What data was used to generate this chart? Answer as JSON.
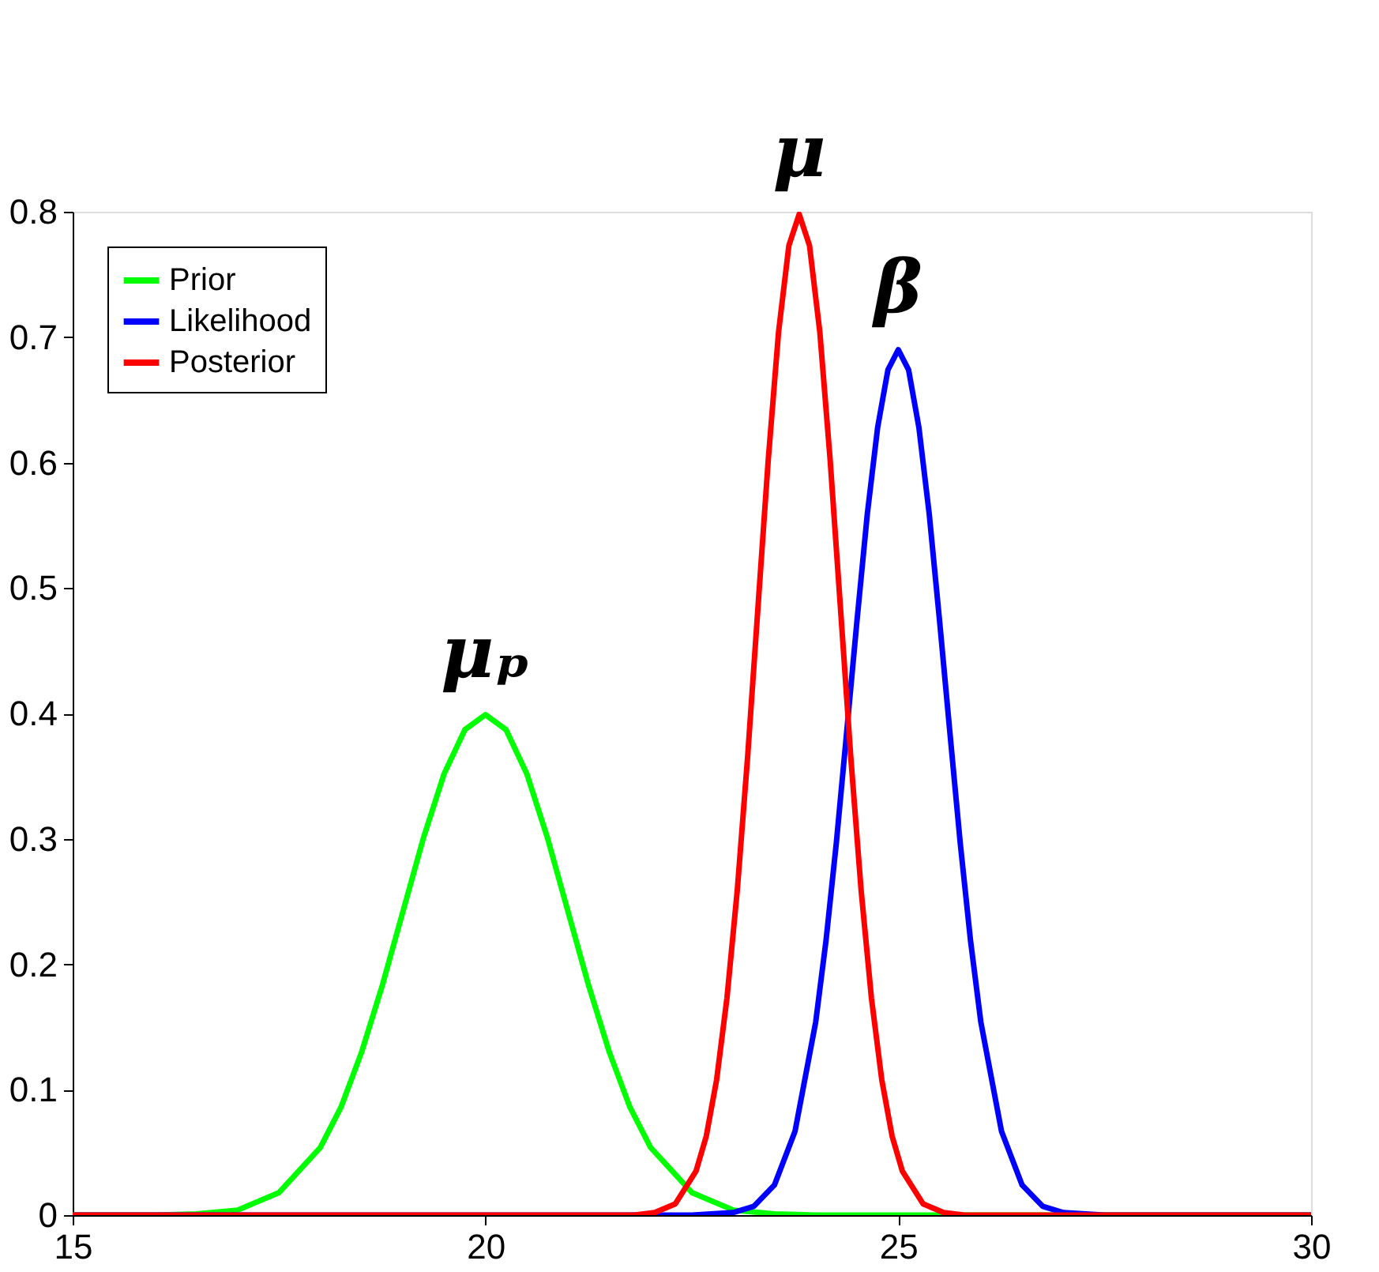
{
  "chart_data": {
    "type": "line",
    "xlim": [
      15,
      30
    ],
    "ylim": [
      0,
      0.8
    ],
    "xticks": [
      15,
      20,
      25,
      30
    ],
    "yticks": [
      0,
      0.1,
      0.2,
      0.3,
      0.4,
      0.5,
      0.6,
      0.7,
      0.8
    ],
    "grid": false,
    "legend": "top left",
    "marker": "none",
    "line_style": "solid",
    "series": [
      {
        "name": "Prior",
        "color": "#00ff00",
        "x": [
          15,
          16,
          16.5,
          17,
          17.5,
          18,
          18.25,
          18.5,
          18.75,
          19,
          19.25,
          19.5,
          19.75,
          20,
          20.25,
          20.5,
          20.75,
          21,
          21.25,
          21.5,
          21.75,
          22,
          22.5,
          23,
          23.5,
          24,
          30
        ],
        "values": [
          0.0,
          0.0,
          0.001,
          0.004,
          0.018,
          0.054,
          0.086,
          0.13,
          0.183,
          0.242,
          0.301,
          0.352,
          0.387,
          0.399,
          0.387,
          0.352,
          0.301,
          0.242,
          0.183,
          0.13,
          0.086,
          0.054,
          0.018,
          0.004,
          0.001,
          0.0,
          0.0
        ]
      },
      {
        "name": "Likelihood",
        "color": "#0000ff",
        "x": [
          15,
          22.5,
          23,
          23.25,
          23.5,
          23.75,
          24,
          24.125,
          24.25,
          24.375,
          24.5,
          24.625,
          24.75,
          24.875,
          25,
          25.125,
          25.25,
          25.375,
          25.5,
          25.625,
          25.75,
          25.875,
          26,
          26.25,
          26.5,
          26.75,
          27,
          27.5,
          30
        ],
        "values": [
          0.0,
          0.0,
          0.002,
          0.007,
          0.024,
          0.067,
          0.154,
          0.219,
          0.297,
          0.385,
          0.474,
          0.559,
          0.628,
          0.674,
          0.69,
          0.674,
          0.628,
          0.559,
          0.474,
          0.385,
          0.297,
          0.219,
          0.154,
          0.067,
          0.024,
          0.007,
          0.002,
          0.0,
          0.0
        ]
      },
      {
        "name": "Posterior",
        "color": "#ff0000",
        "x": [
          15,
          21.8,
          22.05,
          22.3,
          22.55,
          22.675,
          22.8,
          22.925,
          23.05,
          23.175,
          23.3,
          23.425,
          23.55,
          23.675,
          23.8,
          23.925,
          24.05,
          24.175,
          24.3,
          24.425,
          24.55,
          24.675,
          24.8,
          24.925,
          25.05,
          25.3,
          25.55,
          25.8,
          30
        ],
        "values": [
          0.0,
          0.0,
          0.002,
          0.009,
          0.035,
          0.063,
          0.108,
          0.173,
          0.259,
          0.365,
          0.484,
          0.602,
          0.704,
          0.773,
          0.798,
          0.773,
          0.704,
          0.602,
          0.484,
          0.365,
          0.259,
          0.173,
          0.108,
          0.063,
          0.035,
          0.009,
          0.002,
          0.0,
          0.0
        ]
      }
    ],
    "annotations": [
      {
        "text": "μₚ",
        "x": 20,
        "y": 0.399
      },
      {
        "text": "μ",
        "x": 23.8,
        "y": 0.798
      },
      {
        "text": "β",
        "x": 25,
        "y": 0.69
      }
    ]
  }
}
